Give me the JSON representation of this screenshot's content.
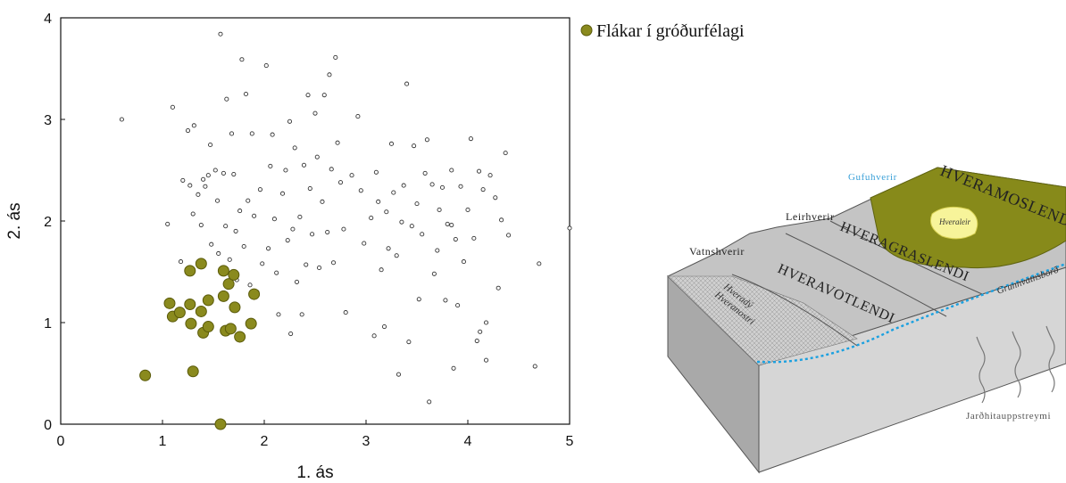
{
  "chart_data": {
    "type": "scatter",
    "xlabel": "1. ás",
    "ylabel": "2. ás",
    "xlim": [
      0,
      5
    ],
    "ylim": [
      0,
      4
    ],
    "xticks": [
      "0",
      "1",
      "2",
      "3",
      "4",
      "5"
    ],
    "yticks": [
      "0",
      "1",
      "2",
      "3",
      "4"
    ],
    "legend": {
      "position": "top-right-outside",
      "label": "Flákar í gróðurfélagi"
    },
    "colors": {
      "highlight": "#8a8a1e",
      "highlight_edge": "#5a5a0a",
      "other": "#ffffff",
      "other_edge": "#333333"
    },
    "series": [
      {
        "name": "Flákar í gróðurfélagi",
        "points": [
          [
            0.83,
            0.48
          ],
          [
            1.07,
            1.19
          ],
          [
            1.1,
            1.06
          ],
          [
            1.17,
            1.1
          ],
          [
            1.27,
            1.51
          ],
          [
            1.27,
            1.18
          ],
          [
            1.28,
            0.99
          ],
          [
            1.3,
            0.52
          ],
          [
            1.38,
            1.58
          ],
          [
            1.38,
            1.11
          ],
          [
            1.4,
            0.9
          ],
          [
            1.45,
            1.22
          ],
          [
            1.45,
            0.96
          ],
          [
            1.57,
            0.0
          ],
          [
            1.6,
            1.51
          ],
          [
            1.6,
            1.26
          ],
          [
            1.62,
            0.92
          ],
          [
            1.65,
            1.38
          ],
          [
            1.67,
            0.94
          ],
          [
            1.7,
            1.47
          ],
          [
            1.71,
            1.15
          ],
          [
            1.76,
            0.86
          ],
          [
            1.87,
            0.99
          ],
          [
            1.9,
            1.28
          ]
        ]
      },
      {
        "points": [
          [
            0.6,
            3.0
          ],
          [
            1.05,
            1.97
          ],
          [
            1.1,
            3.12
          ],
          [
            1.18,
            1.6
          ],
          [
            1.2,
            2.4
          ],
          [
            1.25,
            2.89
          ],
          [
            1.27,
            2.35
          ],
          [
            1.3,
            2.07
          ],
          [
            1.31,
            2.94
          ],
          [
            1.35,
            2.26
          ],
          [
            1.38,
            1.96
          ],
          [
            1.4,
            2.41
          ],
          [
            1.42,
            2.34
          ],
          [
            1.45,
            2.45
          ],
          [
            1.47,
            2.75
          ],
          [
            1.48,
            1.77
          ],
          [
            1.52,
            2.5
          ],
          [
            1.54,
            2.2
          ],
          [
            1.55,
            1.68
          ],
          [
            1.57,
            3.84
          ],
          [
            1.6,
            2.47
          ],
          [
            1.62,
            1.95
          ],
          [
            1.63,
            3.2
          ],
          [
            1.66,
            1.62
          ],
          [
            1.68,
            2.86
          ],
          [
            1.7,
            2.46
          ],
          [
            1.72,
            1.9
          ],
          [
            1.73,
            1.42
          ],
          [
            1.76,
            2.1
          ],
          [
            1.78,
            3.59
          ],
          [
            1.8,
            1.75
          ],
          [
            1.82,
            3.25
          ],
          [
            1.84,
            2.2
          ],
          [
            1.86,
            1.37
          ],
          [
            1.88,
            2.86
          ],
          [
            1.9,
            2.05
          ],
          [
            1.93,
            1.3
          ],
          [
            1.96,
            2.31
          ],
          [
            1.98,
            1.58
          ],
          [
            2.02,
            3.53
          ],
          [
            2.04,
            1.73
          ],
          [
            2.06,
            2.54
          ],
          [
            2.08,
            2.85
          ],
          [
            2.1,
            2.02
          ],
          [
            2.12,
            1.49
          ],
          [
            2.14,
            1.08
          ],
          [
            2.18,
            2.27
          ],
          [
            2.21,
            2.5
          ],
          [
            2.23,
            1.81
          ],
          [
            2.25,
            2.98
          ],
          [
            2.26,
            0.89
          ],
          [
            2.28,
            1.92
          ],
          [
            2.3,
            2.72
          ],
          [
            2.32,
            1.4
          ],
          [
            2.35,
            2.04
          ],
          [
            2.37,
            1.08
          ],
          [
            2.39,
            2.55
          ],
          [
            2.41,
            1.57
          ],
          [
            2.43,
            3.24
          ],
          [
            2.45,
            2.32
          ],
          [
            2.47,
            1.87
          ],
          [
            2.5,
            3.06
          ],
          [
            2.52,
            2.63
          ],
          [
            2.54,
            1.54
          ],
          [
            2.57,
            2.19
          ],
          [
            2.59,
            3.24
          ],
          [
            2.62,
            1.89
          ],
          [
            2.64,
            3.44
          ],
          [
            2.66,
            2.51
          ],
          [
            2.68,
            1.59
          ],
          [
            2.7,
            3.61
          ],
          [
            2.72,
            2.77
          ],
          [
            2.75,
            2.38
          ],
          [
            2.78,
            1.92
          ],
          [
            2.8,
            1.1
          ],
          [
            2.86,
            2.45
          ],
          [
            2.92,
            3.03
          ],
          [
            2.95,
            2.3
          ],
          [
            2.98,
            1.78
          ],
          [
            3.05,
            2.03
          ],
          [
            3.08,
            0.87
          ],
          [
            3.1,
            2.48
          ],
          [
            3.12,
            2.19
          ],
          [
            3.15,
            1.52
          ],
          [
            3.18,
            0.96
          ],
          [
            3.2,
            2.09
          ],
          [
            3.22,
            1.73
          ],
          [
            3.25,
            2.76
          ],
          [
            3.27,
            2.28
          ],
          [
            3.3,
            1.66
          ],
          [
            3.32,
            0.49
          ],
          [
            3.35,
            1.99
          ],
          [
            3.37,
            2.35
          ],
          [
            3.4,
            3.35
          ],
          [
            3.42,
            0.81
          ],
          [
            3.45,
            1.95
          ],
          [
            3.47,
            2.74
          ],
          [
            3.5,
            2.17
          ],
          [
            3.52,
            1.23
          ],
          [
            3.55,
            1.87
          ],
          [
            3.58,
            2.47
          ],
          [
            3.6,
            2.8
          ],
          [
            3.62,
            0.22
          ],
          [
            3.65,
            2.36
          ],
          [
            3.67,
            1.48
          ],
          [
            3.7,
            1.71
          ],
          [
            3.72,
            2.11
          ],
          [
            3.75,
            2.33
          ],
          [
            3.78,
            1.22
          ],
          [
            3.8,
            1.97
          ],
          [
            3.84,
            2.5
          ],
          [
            3.86,
            0.55
          ],
          [
            3.88,
            1.82
          ],
          [
            3.9,
            1.17
          ],
          [
            3.93,
            2.34
          ],
          [
            3.96,
            1.6
          ],
          [
            4.0,
            2.11
          ],
          [
            4.03,
            2.81
          ],
          [
            4.06,
            1.83
          ],
          [
            4.09,
            0.82
          ],
          [
            4.11,
            2.49
          ],
          [
            4.15,
            2.31
          ],
          [
            4.18,
            1.0
          ],
          [
            4.22,
            2.45
          ],
          [
            4.27,
            2.23
          ],
          [
            4.3,
            1.34
          ],
          [
            4.33,
            2.01
          ],
          [
            4.37,
            2.67
          ],
          [
            4.4,
            1.86
          ],
          [
            4.66,
            0.57
          ],
          [
            4.7,
            1.58
          ],
          [
            5.0,
            1.93
          ],
          [
            4.18,
            0.63
          ],
          [
            4.12,
            0.91
          ],
          [
            3.84,
            1.96
          ]
        ]
      }
    ]
  },
  "diagram": {
    "labels": {
      "gufuhverir": "Gufuhverir",
      "leirhverir": "Leirhverir",
      "vatnshverir": "Vatnshverir",
      "hveramoslendi": "HVERAMOSLENDI",
      "hveragraslendi": "HVERAGRASLENDI",
      "hveravotlendi": "HVERAVOTLENDI",
      "hveraleir": "Hveraleir",
      "hverady": "Hveradý",
      "hveranostri": "Hveranostri",
      "grunnvatnsbord": "Grunnvatnsborð",
      "jardhitauppstreymi": "Jarðhitauppstreymi"
    },
    "colors": {
      "moss": "#878a1a",
      "moss_dark": "#5e6210",
      "hveraleir": "#f7f49a",
      "groundwater": "#1aa0e0",
      "gufuhverir_text": "#3aa0d8",
      "block_light": "#d8d8d8",
      "block_mid": "#bdbdbd",
      "block_dark": "#9a9a9a"
    }
  }
}
